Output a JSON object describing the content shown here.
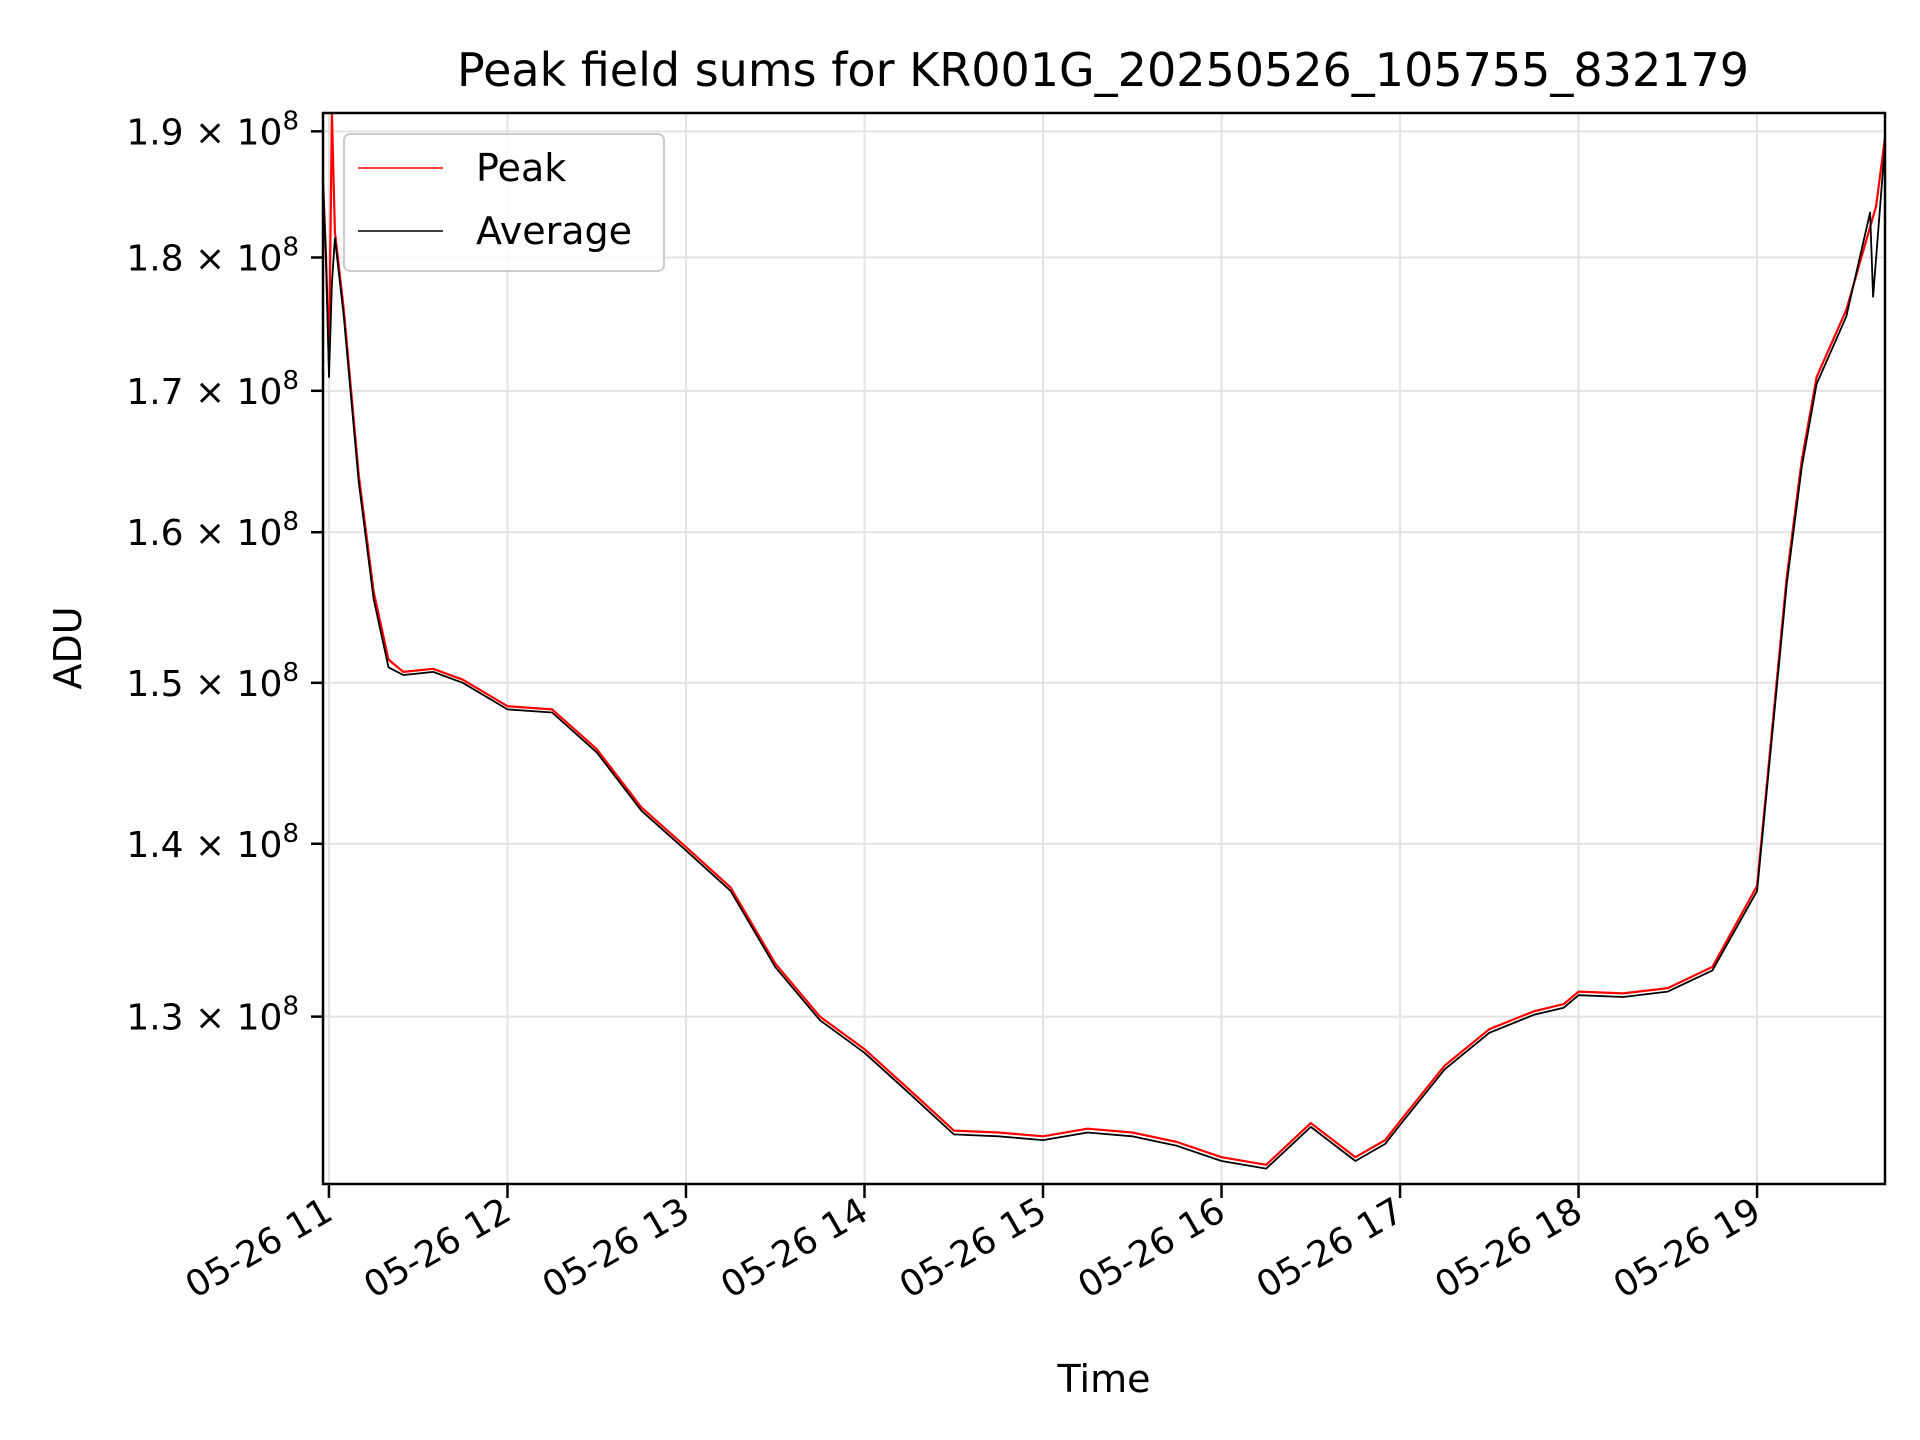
{
  "chart_data": {
    "type": "line",
    "title": "Peak field sums for KR001G_20250526_105755_832179",
    "xlabel": "Time",
    "ylabel": "ADU",
    "yscale": "log",
    "xlim": [
      "05-26 10:58",
      "05-26 19:43"
    ],
    "ylim": [
      121000000,
      191500000
    ],
    "grid": true,
    "legend": {
      "placement": "upper-left"
    },
    "x_ticks": [
      "05-26 11",
      "05-26 12",
      "05-26 13",
      "05-26 14",
      "05-26 15",
      "05-26 16",
      "05-26 17",
      "05-26 18",
      "05-26 19"
    ],
    "y_ticks": [
      {
        "value": 130000000,
        "mantissa": "1.3",
        "base": "× 10",
        "exp": "8"
      },
      {
        "value": 140000000,
        "mantissa": "1.4",
        "base": "× 10",
        "exp": "8"
      },
      {
        "value": 150000000,
        "mantissa": "1.5",
        "base": "× 10",
        "exp": "8"
      },
      {
        "value": 160000000,
        "mantissa": "1.6",
        "base": "× 10",
        "exp": "8"
      },
      {
        "value": 170000000,
        "mantissa": "1.7",
        "base": "× 10",
        "exp": "8"
      },
      {
        "value": 180000000,
        "mantissa": "1.8",
        "base": "× 10",
        "exp": "8"
      },
      {
        "value": 190000000,
        "mantissa": "1.9",
        "base": "× 10",
        "exp": "8"
      }
    ],
    "series": [
      {
        "name": "Peak",
        "color": "#ff0000",
        "x": [
          "05-26 10:58",
          "05-26 10:59",
          "05-26 11:00",
          "05-26 11:01",
          "05-26 11:02",
          "05-26 11:05",
          "05-26 11:10",
          "05-26 11:15",
          "05-26 11:20",
          "05-26 11:25",
          "05-26 11:30",
          "05-26 11:35",
          "05-26 11:45",
          "05-26 12:00",
          "05-26 12:15",
          "05-26 12:30",
          "05-26 12:45",
          "05-26 13:00",
          "05-26 13:15",
          "05-26 13:30",
          "05-26 13:45",
          "05-26 14:00",
          "05-26 14:15",
          "05-26 14:30",
          "05-26 14:45",
          "05-26 15:00",
          "05-26 15:15",
          "05-26 15:30",
          "05-26 15:45",
          "05-26 16:00",
          "05-26 16:15",
          "05-26 16:30",
          "05-26 16:45",
          "05-26 16:55",
          "05-26 16:56",
          "05-26 17:00",
          "05-26 17:15",
          "05-26 17:30",
          "05-26 17:45",
          "05-26 17:55",
          "05-26 18:00",
          "05-26 18:15",
          "05-26 18:30",
          "05-26 18:45",
          "05-26 19:00",
          "05-26 19:10",
          "05-26 19:15",
          "05-26 19:20",
          "05-26 19:30",
          "05-26 19:40",
          "05-26 19:43"
        ],
        "y": [
          186000000,
          180000000,
          172000000,
          191500000,
          182000000,
          176000000,
          164000000,
          156000000,
          151500000,
          150700000,
          150800000,
          150900000,
          150200000,
          148500000,
          148300000,
          145800000,
          142200000,
          139800000,
          137400000,
          133000000,
          130000000,
          128200000,
          126000000,
          123800000,
          123700000,
          123500000,
          123900000,
          123700000,
          123200000,
          122400000,
          122000000,
          124200000,
          122400000,
          123300000,
          123500000,
          124300000,
          127300000,
          129300000,
          130300000,
          130700000,
          131400000,
          131300000,
          131600000,
          132800000,
          137500000,
          157000000,
          165000000,
          171000000,
          176000000,
          184000000,
          189500000
        ]
      },
      {
        "name": "Average",
        "color": "#000000",
        "x": [
          "05-26 10:58",
          "05-26 10:59",
          "05-26 11:00",
          "05-26 11:01",
          "05-26 11:02",
          "05-26 11:05",
          "05-26 11:10",
          "05-26 11:15",
          "05-26 11:20",
          "05-26 11:25",
          "05-26 11:30",
          "05-26 11:35",
          "05-26 11:45",
          "05-26 12:00",
          "05-26 12:15",
          "05-26 12:30",
          "05-26 12:45",
          "05-26 13:00",
          "05-26 13:15",
          "05-26 13:30",
          "05-26 13:45",
          "05-26 14:00",
          "05-26 14:15",
          "05-26 14:30",
          "05-26 14:45",
          "05-26 15:00",
          "05-26 15:15",
          "05-26 15:30",
          "05-26 15:45",
          "05-26 16:00",
          "05-26 16:15",
          "05-26 16:30",
          "05-26 16:45",
          "05-26 16:55",
          "05-26 16:56",
          "05-26 17:00",
          "05-26 17:15",
          "05-26 17:30",
          "05-26 17:45",
          "05-26 17:55",
          "05-26 18:00",
          "05-26 18:15",
          "05-26 18:30",
          "05-26 18:45",
          "05-26 19:00",
          "05-26 19:10",
          "05-26 19:15",
          "05-26 19:20",
          "05-26 19:30",
          "05-26 19:38",
          "05-26 19:39",
          "05-26 19:43"
        ],
        "y": [
          186000000,
          180000000,
          171000000,
          178000000,
          181500000,
          175500000,
          163500000,
          155500000,
          151000000,
          150500000,
          150600000,
          150700000,
          150000000,
          148300000,
          148100000,
          145600000,
          142000000,
          139600000,
          137200000,
          132800000,
          129800000,
          128000000,
          125800000,
          123600000,
          123500000,
          123300000,
          123700000,
          123500000,
          123000000,
          122200000,
          121800000,
          124000000,
          122200000,
          123100000,
          123300000,
          124100000,
          127100000,
          129100000,
          130100000,
          130500000,
          131200000,
          131100000,
          131400000,
          132600000,
          137200000,
          156500000,
          164500000,
          170500000,
          175500000,
          183500000,
          177000000,
          189000000
        ]
      }
    ]
  }
}
